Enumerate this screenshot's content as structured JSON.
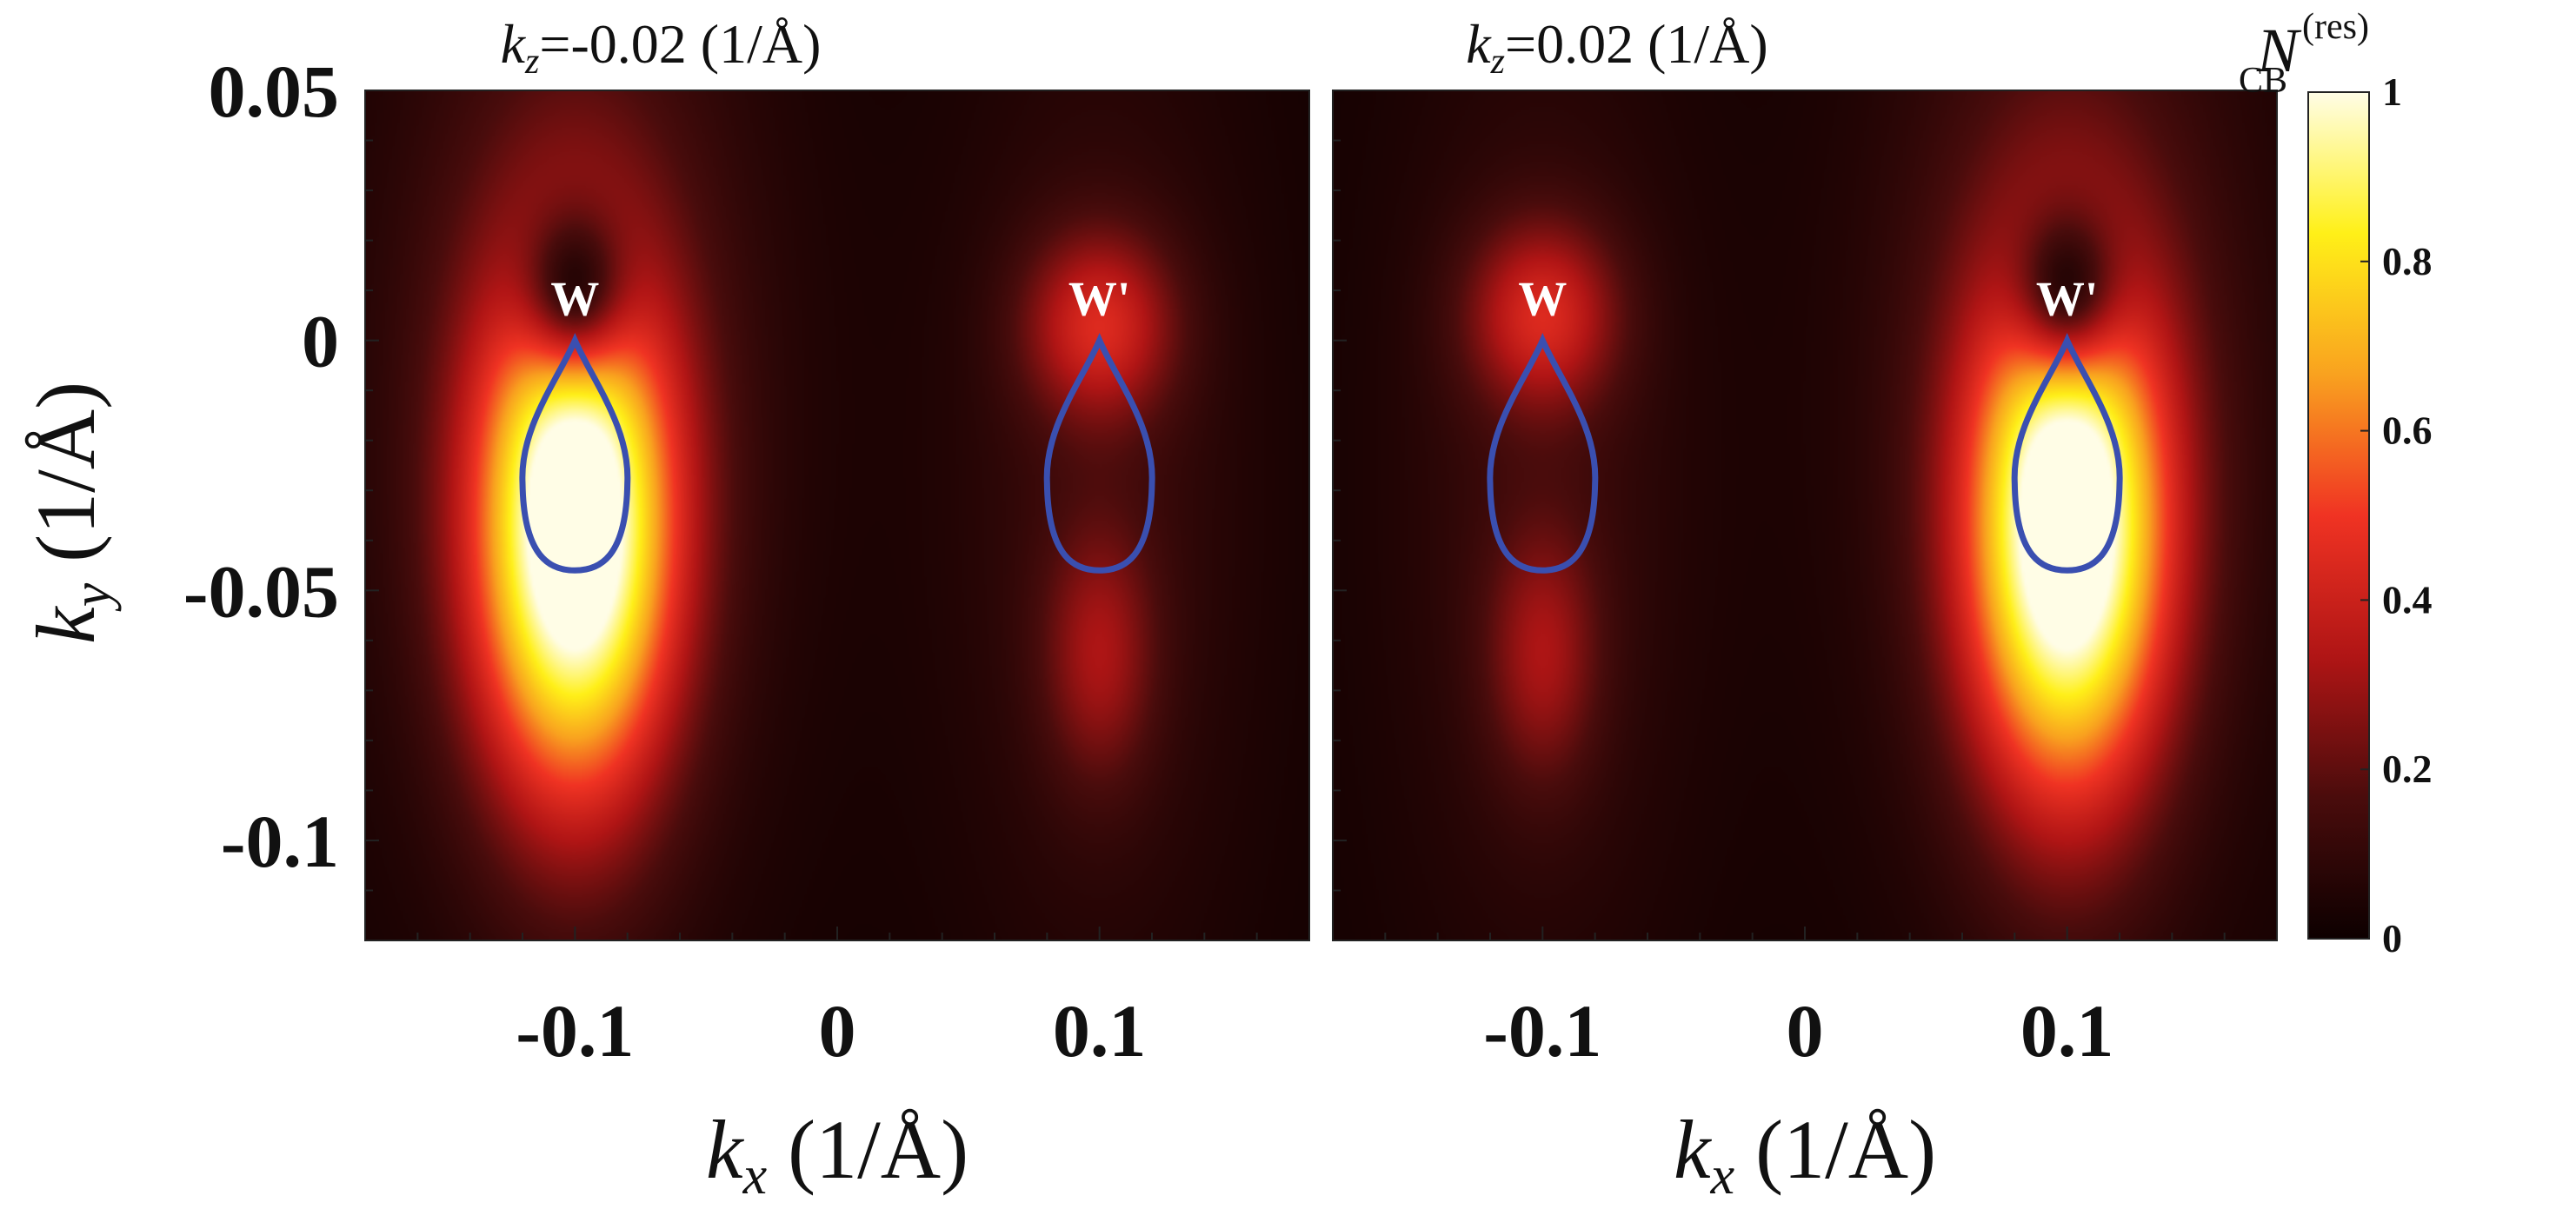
{
  "chart_data": [
    {
      "type": "heatmap",
      "title": "k_z=-0.02 (1/Å)",
      "title_parts": {
        "var": "k",
        "sub": "z",
        "rest": "=-0.02 (1/Å)"
      },
      "xlabel_parts": {
        "var": "k",
        "sub": "x",
        "rest": " (1/Å)"
      },
      "ylabel_parts": {
        "var": "k",
        "sub": "y",
        "rest": " (1/Å)"
      },
      "xlim": [
        -0.18,
        0.18
      ],
      "ylim": [
        -0.12,
        0.05
      ],
      "x_ticks": [
        -0.1,
        0,
        0.1
      ],
      "x_tick_labels": [
        "-0.1",
        "0",
        "0.1"
      ],
      "y_ticks": [
        0.05,
        0,
        -0.05,
        -0.1
      ],
      "y_tick_labels": [
        "0.05",
        "0",
        "-0.05",
        "-0.1"
      ],
      "annotations": [
        {
          "text": "W",
          "x": -0.1,
          "y": 0.003
        },
        {
          "text": "W'",
          "x": 0.1,
          "y": 0.003
        }
      ],
      "contours": [
        {
          "center_x": -0.1,
          "top_y": 0.0,
          "bottom_y": -0.046,
          "half_width": 0.02,
          "color": "#3a4fb0"
        },
        {
          "center_x": 0.1,
          "top_y": 0.0,
          "bottom_y": -0.046,
          "half_width": 0.02,
          "color": "#3a4fb0"
        }
      ],
      "blobs": [
        {
          "x": -0.1,
          "y": -0.038,
          "sx": 0.026,
          "sy": 0.036,
          "amp": 1.05
        },
        {
          "x": -0.1,
          "y": 0.008,
          "sx": 0.014,
          "sy": 0.012,
          "amp": -0.55
        },
        {
          "x": -0.1,
          "y": -0.01,
          "sx": 0.05,
          "sy": 0.07,
          "amp": 0.18
        },
        {
          "x": 0.1,
          "y": 0.003,
          "sx": 0.02,
          "sy": 0.013,
          "amp": 0.34
        },
        {
          "x": 0.1,
          "y": -0.063,
          "sx": 0.015,
          "sy": 0.018,
          "amp": 0.22
        },
        {
          "x": 0.1,
          "y": -0.03,
          "sx": 0.04,
          "sy": 0.07,
          "amp": 0.1
        }
      ]
    },
    {
      "type": "heatmap",
      "title": "k_z=0.02 (1/Å)",
      "title_parts": {
        "var": "k",
        "sub": "z",
        "rest": "=0.02 (1/Å)"
      },
      "xlabel_parts": {
        "var": "k",
        "sub": "x",
        "rest": " (1/Å)"
      },
      "xlim": [
        -0.18,
        0.18
      ],
      "ylim": [
        -0.12,
        0.05
      ],
      "x_ticks": [
        -0.1,
        0,
        0.1
      ],
      "x_tick_labels": [
        "-0.1",
        "0",
        "0.1"
      ],
      "annotations": [
        {
          "text": "W",
          "x": -0.1,
          "y": 0.003
        },
        {
          "text": "W'",
          "x": 0.1,
          "y": 0.003
        }
      ],
      "contours": [
        {
          "center_x": -0.1,
          "top_y": 0.0,
          "bottom_y": -0.046,
          "half_width": 0.02,
          "color": "#3a4fb0"
        },
        {
          "center_x": 0.1,
          "top_y": 0.0,
          "bottom_y": -0.046,
          "half_width": 0.02,
          "color": "#3a4fb0"
        }
      ],
      "blobs": [
        {
          "x": 0.1,
          "y": -0.038,
          "sx": 0.026,
          "sy": 0.036,
          "amp": 1.05
        },
        {
          "x": 0.1,
          "y": 0.008,
          "sx": 0.014,
          "sy": 0.012,
          "amp": -0.55
        },
        {
          "x": 0.1,
          "y": -0.01,
          "sx": 0.05,
          "sy": 0.07,
          "amp": 0.18
        },
        {
          "x": -0.1,
          "y": 0.005,
          "sx": 0.02,
          "sy": 0.013,
          "amp": 0.34
        },
        {
          "x": -0.1,
          "y": -0.063,
          "sx": 0.015,
          "sy": 0.018,
          "amp": 0.22
        },
        {
          "x": -0.1,
          "y": -0.03,
          "sx": 0.04,
          "sy": 0.07,
          "amp": 0.1
        }
      ]
    }
  ],
  "colorbar": {
    "label_parts": {
      "var": "N",
      "sub": "CB",
      "sup": "(res)"
    },
    "range": [
      0,
      1
    ],
    "ticks": [
      0,
      0.2,
      0.4,
      0.6,
      0.8,
      1
    ],
    "tick_labels": [
      "0",
      "0.2",
      "0.4",
      "0.6",
      "0.8",
      "1"
    ],
    "colormap": "hot",
    "colormap_stops": [
      "#0d0000",
      "#4a0c0c",
      "#b01515",
      "#f03323",
      "#f9a21f",
      "#fff018",
      "#fffde6"
    ]
  }
}
